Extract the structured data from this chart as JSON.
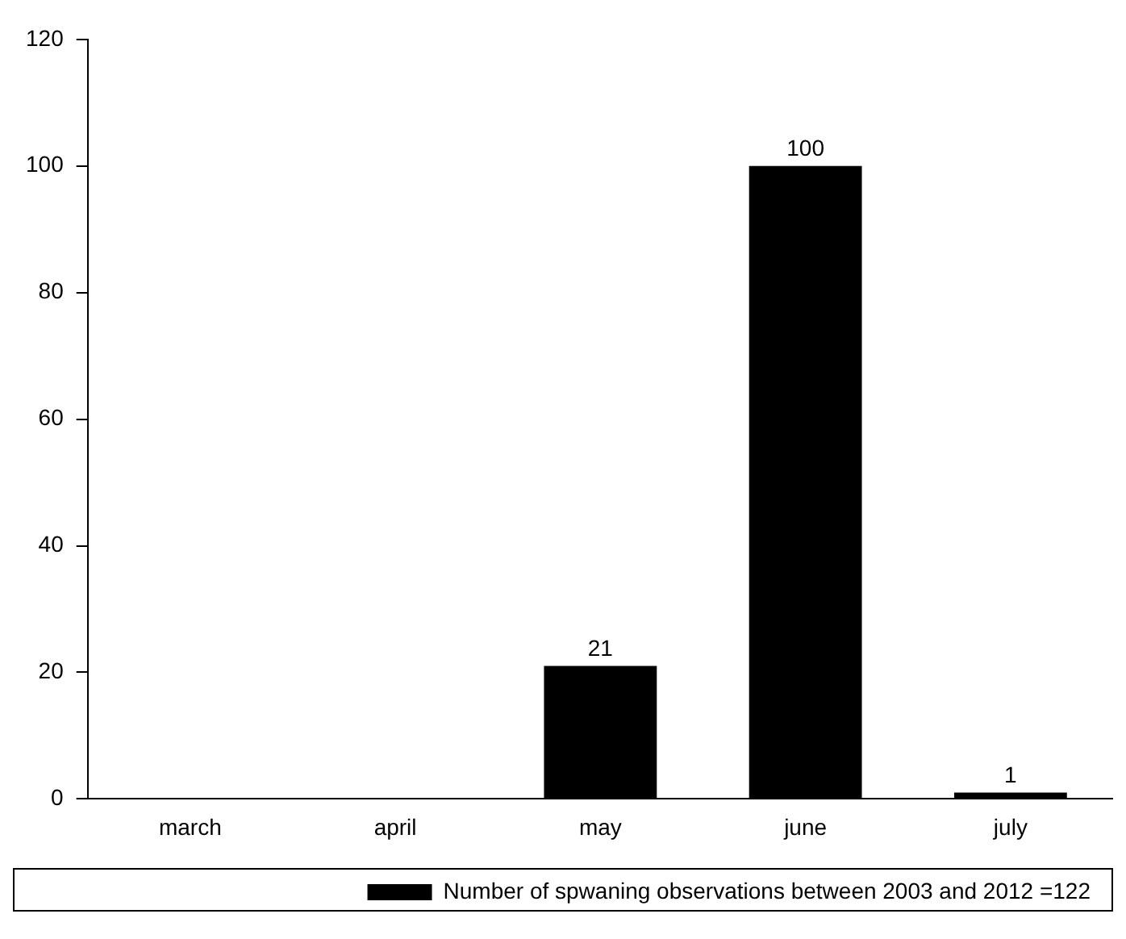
{
  "chart_data": {
    "type": "bar",
    "categories": [
      "march",
      "april",
      "may",
      "june",
      "july"
    ],
    "series": [
      {
        "name": "Number of spwaning observations between 2003 and 2012 =122",
        "color": "#000000",
        "values": [
          0,
          0,
          21,
          100,
          1
        ],
        "value_labels": [
          null,
          null,
          "21",
          "100",
          "1"
        ]
      }
    ],
    "ylim": [
      0,
      120
    ],
    "yticks": [
      0,
      20,
      40,
      60,
      80,
      100,
      120
    ],
    "grid": false,
    "legend": "bottom"
  }
}
